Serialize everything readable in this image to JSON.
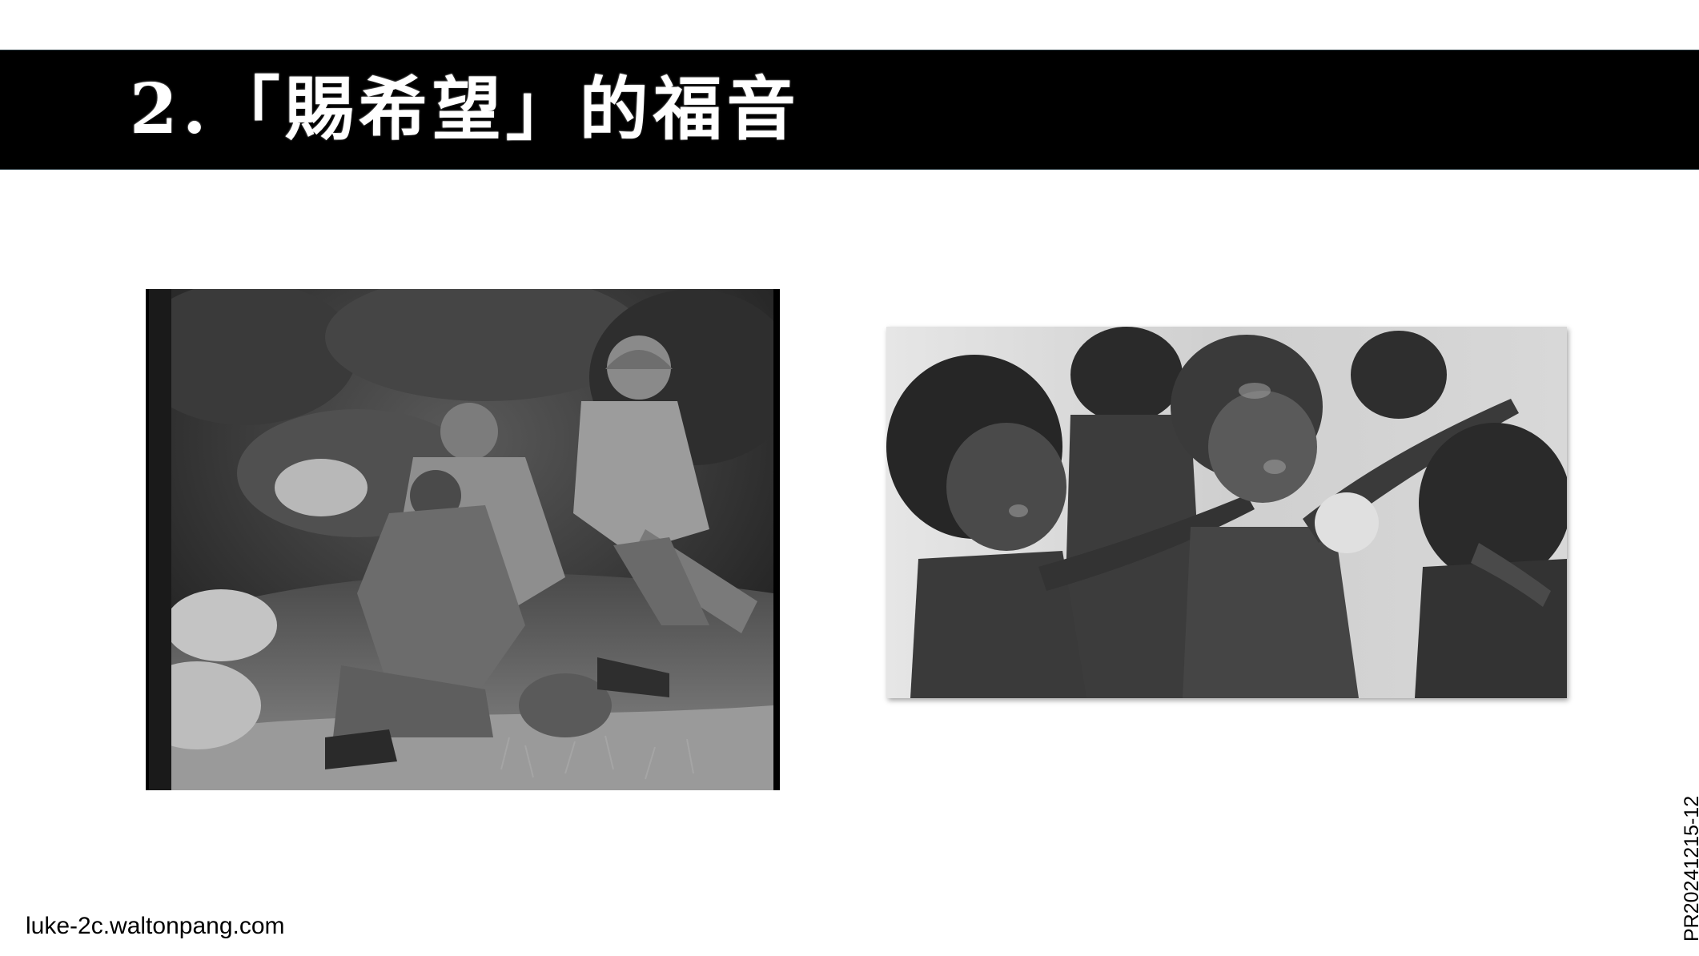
{
  "slide": {
    "title": "2.「賜希望」的福音",
    "footer_url": "luke-2c.waltonpang.com",
    "slide_code": "PR20241215-12",
    "title_bar_color": "#000000",
    "title_text_color": "#ffffff"
  },
  "images": [
    {
      "name": "soldiers-comforting-photo",
      "tone": "black-and-white"
    },
    {
      "name": "hungry-children-photo",
      "tone": "black-and-white"
    }
  ]
}
